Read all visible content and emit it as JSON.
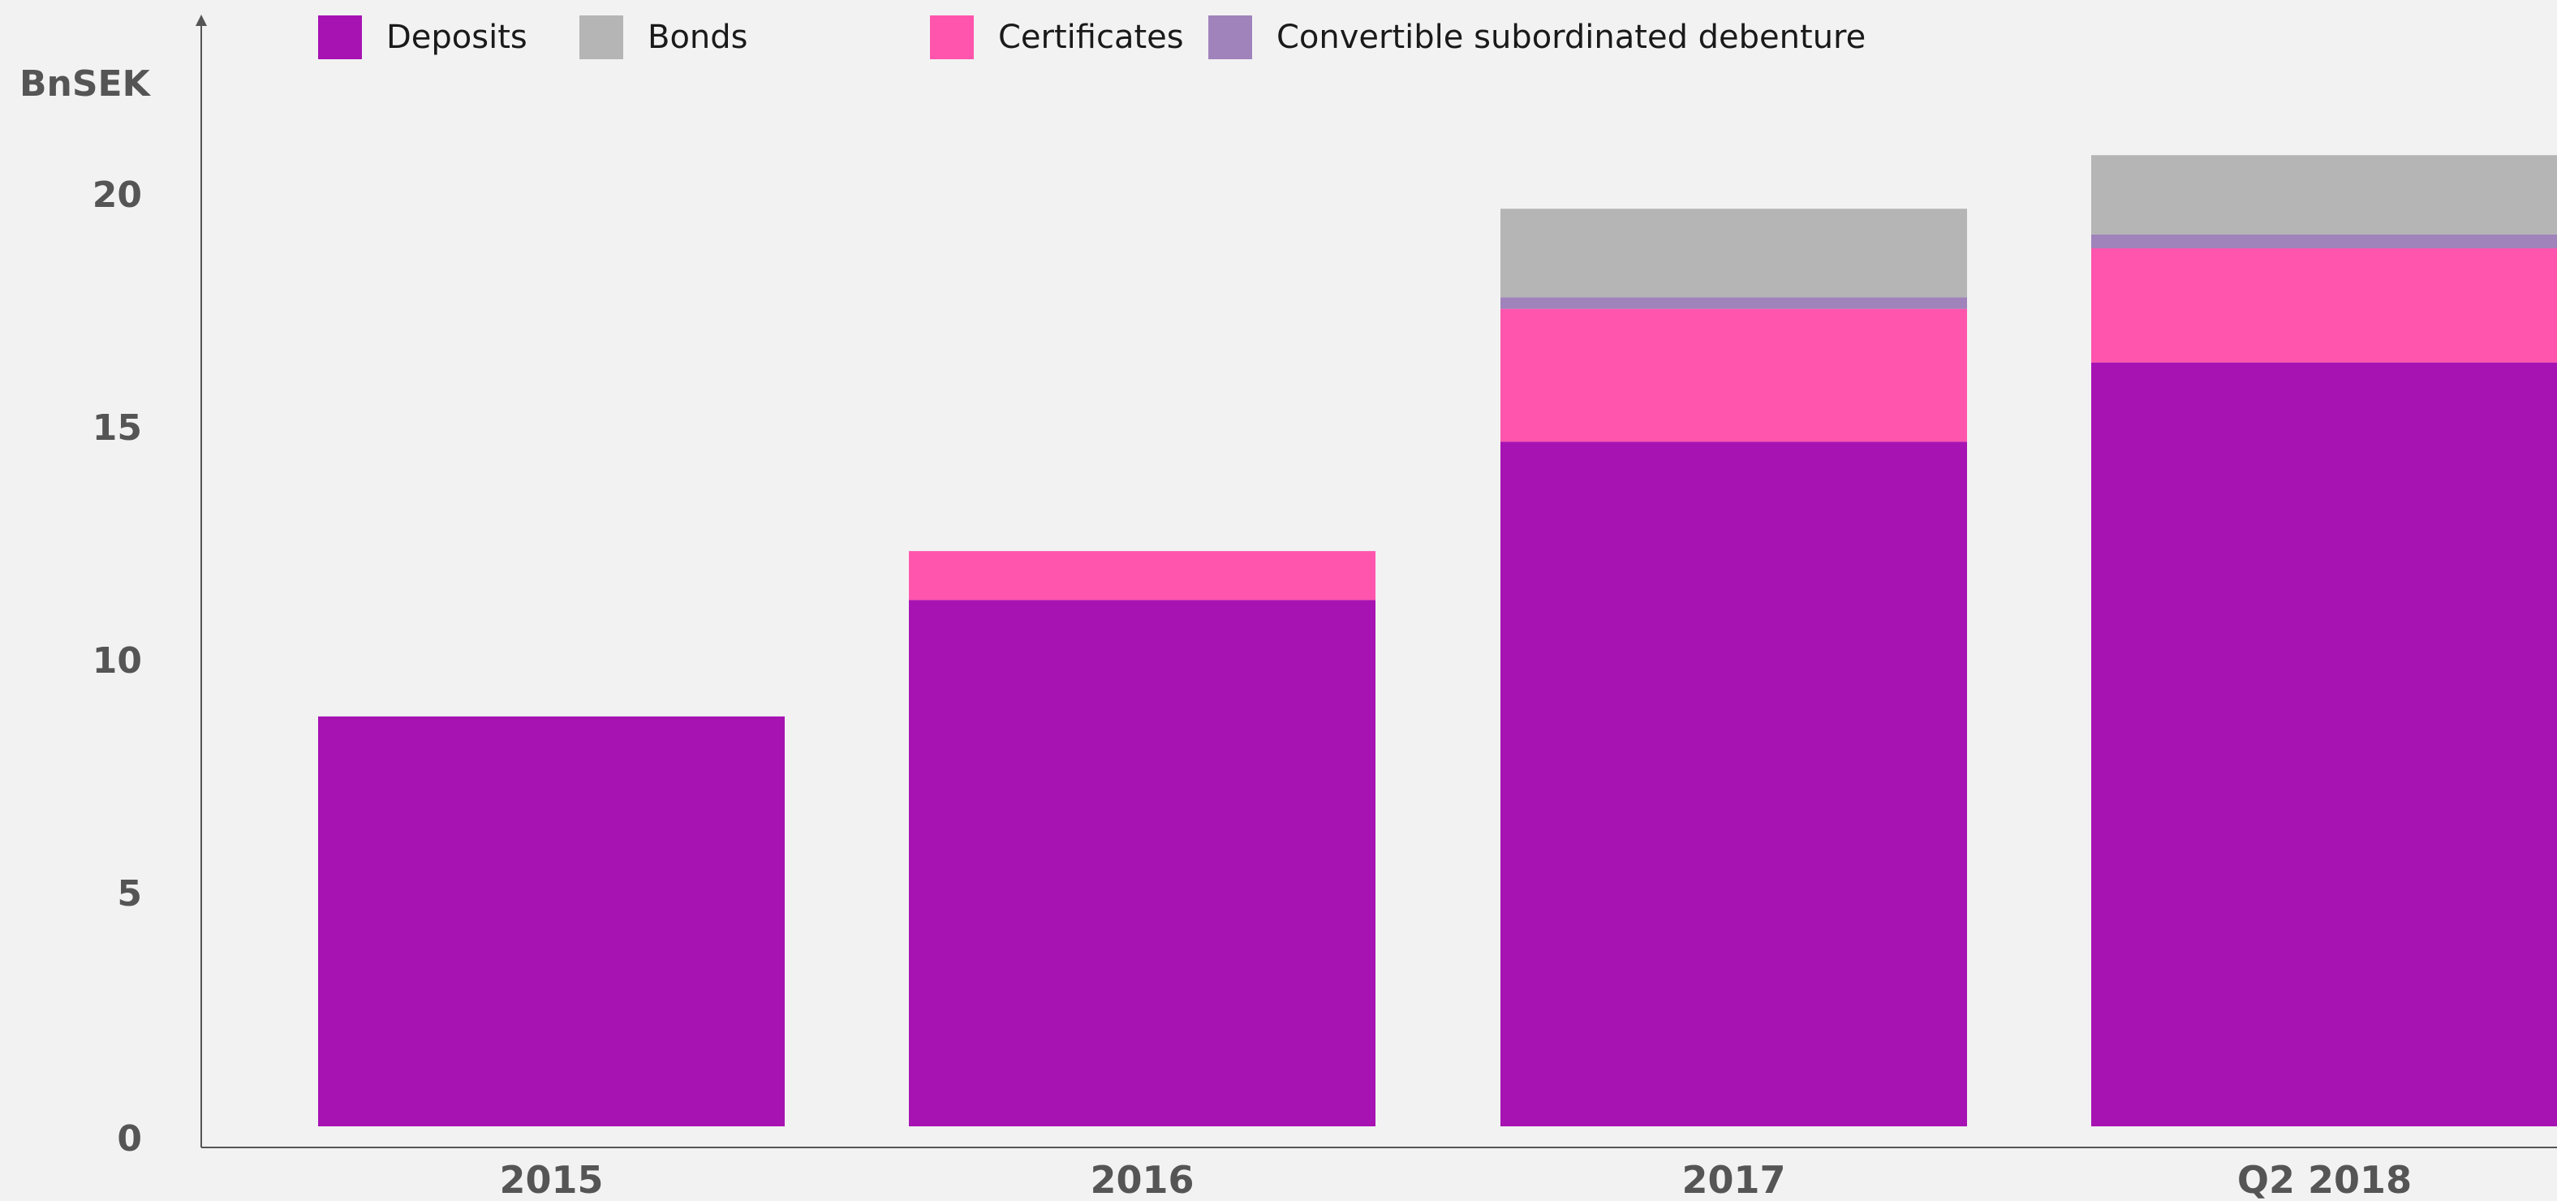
{
  "chart_data": {
    "type": "bar",
    "stacked": true,
    "ylabel": "BnSEK",
    "xlabel": "",
    "ylim": [
      0,
      23.5
    ],
    "yticks": [
      0,
      5,
      10,
      15,
      20
    ],
    "categories": [
      "2015",
      "2016",
      "2017",
      "Q2 2018"
    ],
    "series": [
      {
        "name": "Deposits",
        "color": "#a713b3",
        "values": [
          8.8,
          11.3,
          14.7,
          16.4
        ]
      },
      {
        "name": "Certificates",
        "color": "#ff55ad",
        "values": [
          0,
          1.05,
          2.85,
          2.45
        ]
      },
      {
        "name": "Convertible subordinated debenture",
        "color": "#a183bb",
        "values": [
          0,
          0,
          0.25,
          0.3
        ]
      },
      {
        "name": "Bonds",
        "color": "#b5b5b5",
        "values": [
          0,
          0,
          1.9,
          1.7
        ]
      }
    ],
    "legend": {
      "placement": "top",
      "order": [
        "Deposits",
        "Bonds",
        "Certificates",
        "Convertible subordinated debenture"
      ]
    },
    "grid": false
  }
}
